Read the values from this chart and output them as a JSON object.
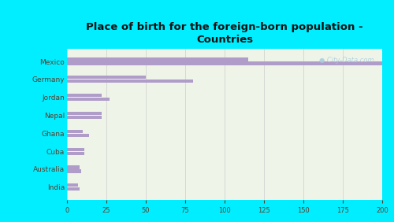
{
  "title": "Place of birth for the foreign-born population -\nCountries",
  "categories": [
    "Mexico",
    "Germany",
    "Jordan",
    "Nepal",
    "Ghana",
    "Cuba",
    "Australia",
    "India"
  ],
  "values1": [
    200,
    80,
    27,
    22,
    14,
    11,
    9,
    8
  ],
  "values2": [
    115,
    50,
    22,
    22,
    10,
    11,
    8,
    7
  ],
  "bar_color": "#b09cc8",
  "background_outer": "#00eeff",
  "background_inner": "#eef5e8",
  "grid_color": "#cccccc",
  "title_color": "#111111",
  "label_color": "#5a3e2b",
  "tick_color": "#5a3e2b",
  "watermark_color": "#aaccdd",
  "xlim": [
    0,
    200
  ],
  "xticks": [
    0,
    25,
    50,
    75,
    100,
    125,
    150,
    175,
    200
  ]
}
